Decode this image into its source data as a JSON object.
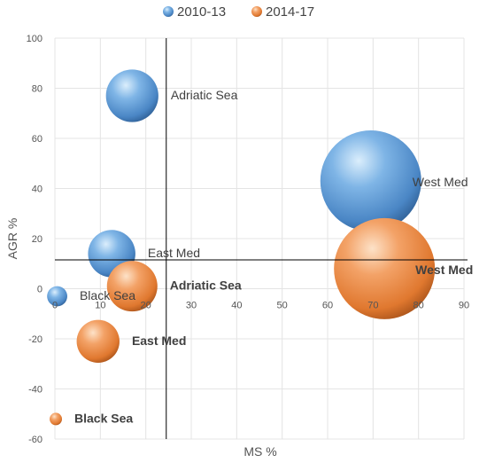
{
  "chart_data": {
    "type": "bubble",
    "xlabel": "MS %",
    "ylabel": "AGR %",
    "xlim": [
      0,
      90
    ],
    "ylim": [
      -60,
      100
    ],
    "xticks": [
      "0",
      "10",
      "20",
      "30",
      "40",
      "50",
      "60",
      "70",
      "80",
      "90"
    ],
    "yticks": [
      "100",
      "80",
      "60",
      "40",
      "20",
      "0",
      "-20",
      "-40",
      "-60"
    ],
    "grid": true,
    "legend_placement": "top-center",
    "reference_lines": {
      "x": 24.5,
      "y": 11.5
    },
    "series": [
      {
        "name": "2010-13",
        "color": "#5b9bd5",
        "points": [
          {
            "label": "Adriatic Sea",
            "x": 17,
            "y": 77,
            "size": 0.27
          },
          {
            "label": "West Med",
            "x": 69.5,
            "y": 43,
            "size": 1.0
          },
          {
            "label": "East Med",
            "x": 12.5,
            "y": 14,
            "size": 0.22
          },
          {
            "label": "Black Sea",
            "x": 0.5,
            "y": -3,
            "size": 0.04
          }
        ]
      },
      {
        "name": "2014-17",
        "color": "#ed7d31",
        "points": [
          {
            "label": "Adriatic Sea",
            "x": 17,
            "y": 1,
            "size": 0.25
          },
          {
            "label": "West Med",
            "x": 72.5,
            "y": 8,
            "size": 1.0
          },
          {
            "label": "East Med",
            "x": 9.5,
            "y": -21,
            "size": 0.18
          },
          {
            "label": "Black Sea",
            "x": 0.2,
            "y": -52,
            "size": 0.015
          }
        ]
      }
    ]
  }
}
